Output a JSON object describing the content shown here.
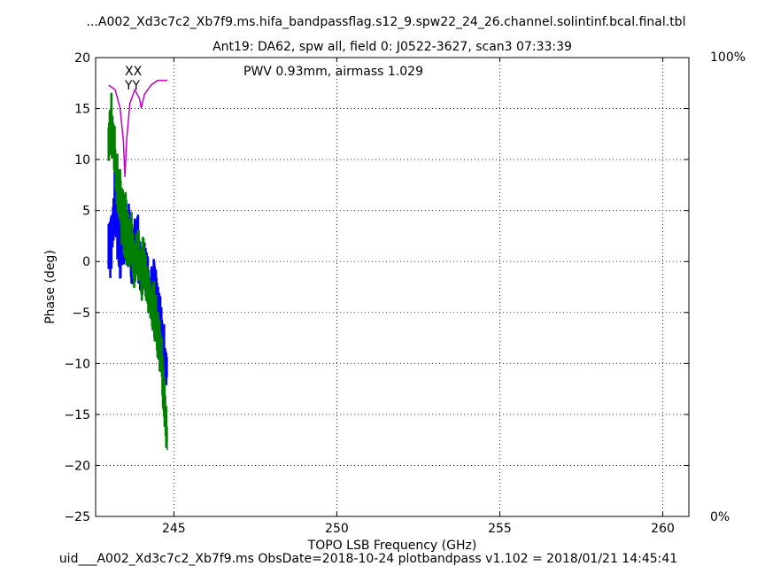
{
  "chart_data": {
    "type": "line",
    "title_line1": "...A002_Xd3c7c2_Xb7f9.ms.hifa_bandpassflag.s12_9.spw22_24_26.channel.solintinf.bcal.final.tbl",
    "title_line2": "Ant19: DA62,  spw all,  field 0: J0522-3627,  scan3  07:33:39",
    "xlabel": "TOPO LSB Frequency (GHz)",
    "ylabel": "Phase (deg)",
    "footer": "uid___A002_Xd3c7c2_Xb7f9.ms  ObsDate=2018-10-24   plotbandpass v1.102 = 2018/01/21 14:45:41",
    "xlim": [
      242.6,
      260.8
    ],
    "ylim": [
      -25,
      20
    ],
    "x_ticks": [
      "245",
      "250",
      "255",
      "260"
    ],
    "y_ticks": [
      "20",
      "15",
      "10",
      "5",
      "0",
      "−5",
      "−10",
      "−15",
      "−20",
      "−25"
    ],
    "right_axis": {
      "top_label": "100%",
      "bottom_label": "0%",
      "color": "#c000c0"
    },
    "annotation": {
      "text": "PWV 0.93mm, airmass 1.029",
      "color": "#c000c0"
    },
    "grid": true,
    "series": [
      {
        "name": "XX",
        "color": "#0000ff",
        "x": [
          243.0,
          243.1,
          243.2,
          243.3,
          243.4,
          243.5,
          243.6,
          243.7,
          243.8,
          243.9,
          244.0,
          244.1,
          244.2,
          244.3,
          244.4,
          244.5,
          244.6,
          244.7,
          244.8
        ],
        "y": [
          1.5,
          2.5,
          5.5,
          3.5,
          2.0,
          3.5,
          2.5,
          0.0,
          2.0,
          1.5,
          -1.5,
          0.5,
          -1.5,
          -3.0,
          -2.5,
          -5.0,
          -6.5,
          -8.5,
          -11.0
        ],
        "spread": [
          3.0,
          3.0,
          3.0,
          3.5,
          4.0,
          3.5,
          3.0,
          2.5,
          2.5,
          3.0,
          2.5,
          2.5,
          2.0,
          2.5,
          2.5,
          2.5,
          2.5,
          2.0,
          1.5
        ]
      },
      {
        "name": "YY",
        "color": "#008000",
        "x": [
          243.0,
          243.1,
          243.2,
          243.3,
          243.4,
          243.5,
          243.6,
          243.7,
          243.8,
          243.9,
          244.0,
          244.1,
          244.2,
          244.3,
          244.4,
          244.5,
          244.6,
          244.7,
          244.8
        ],
        "y": [
          12.5,
          13.0,
          10.0,
          7.0,
          5.0,
          3.5,
          2.5,
          1.5,
          0.0,
          0.5,
          -1.0,
          -0.5,
          -2.5,
          -3.5,
          -5.0,
          -7.0,
          -9.0,
          -13.0,
          -18.5
        ],
        "spread": [
          2.5,
          3.0,
          3.0,
          2.5,
          3.0,
          3.0,
          2.5,
          2.5,
          2.0,
          2.5,
          2.5,
          2.0,
          2.5,
          2.0,
          2.5,
          2.5,
          2.5,
          2.5,
          2.0
        ]
      },
      {
        "name": "transmission",
        "color": "#c000c0",
        "axis": "right",
        "x": [
          243.0,
          243.2,
          243.35,
          243.45,
          243.5,
          243.55,
          243.65,
          243.8,
          243.95,
          244.0,
          244.1,
          244.3,
          244.5,
          244.8
        ],
        "y": [
          94,
          93,
          89,
          82,
          74,
          82,
          90,
          93,
          91,
          89,
          92,
          94,
          95,
          95
        ]
      }
    ]
  }
}
